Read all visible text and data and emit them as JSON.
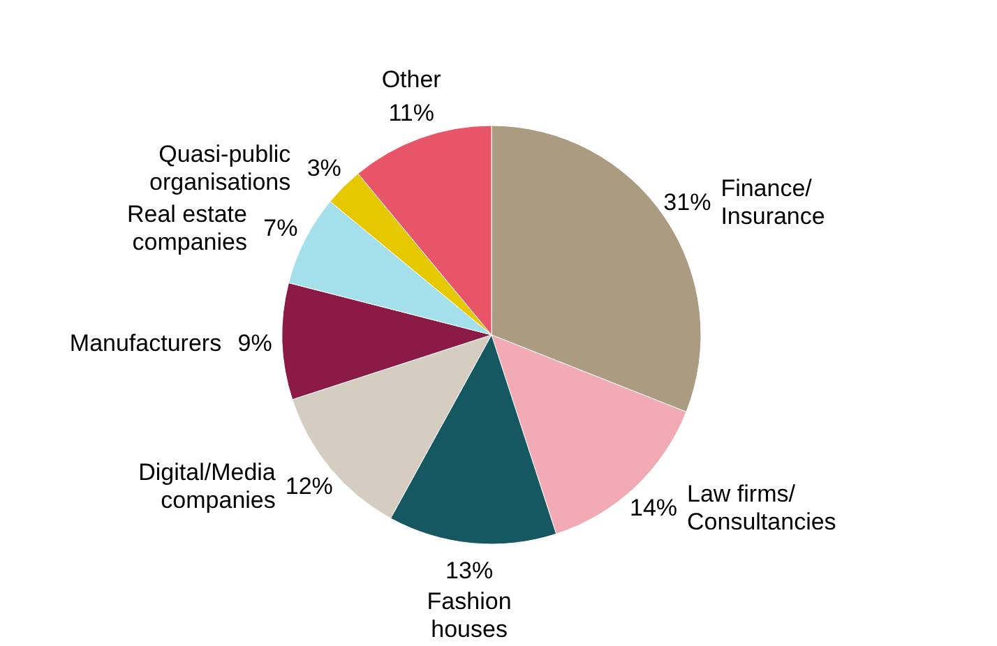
{
  "chart_data": {
    "type": "pie",
    "categories": [
      "Finance/\nInsurance",
      "Law firms/\nConsultancies",
      "Fashion\nhouses",
      "Digital/Media\ncompanies",
      "Manufacturers",
      "Real estate\ncompanies",
      "Quasi-public\norganisations",
      "Other"
    ],
    "values": [
      31,
      14,
      13,
      12,
      9,
      7,
      3,
      11
    ],
    "colors": [
      "#ab9b80",
      "#f2abb4",
      "#165862",
      "#d5cdc0",
      "#8b1a46",
      "#a4e0eb",
      "#e5c800",
      "#e85468"
    ],
    "value_labels": [
      "31%",
      "14%",
      "13%",
      "12%",
      "9%",
      "7%",
      "3%",
      "11%"
    ]
  }
}
